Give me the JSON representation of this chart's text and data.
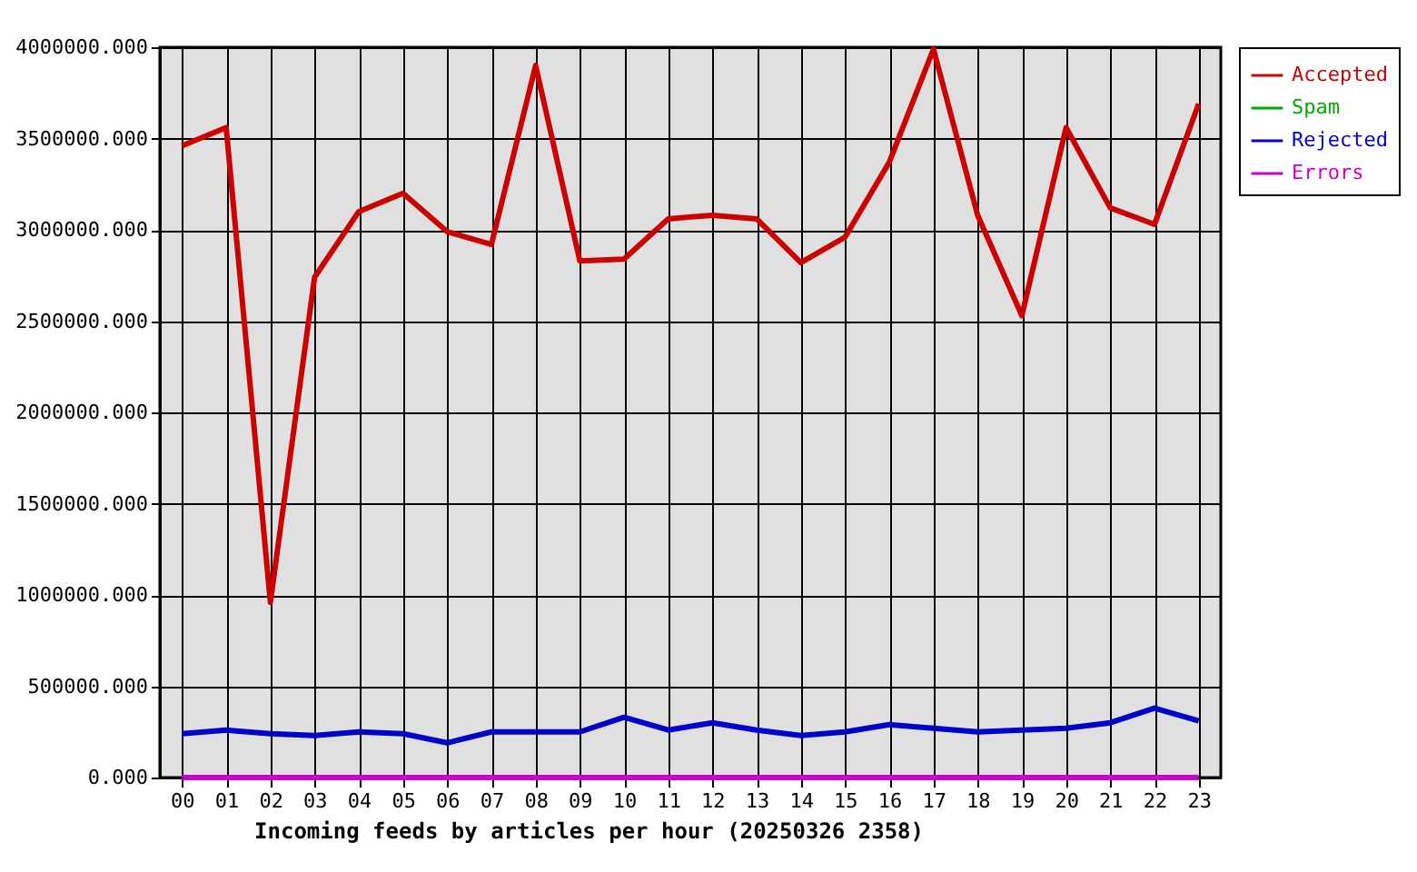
{
  "chart_data": {
    "type": "line",
    "xlabel": "Incoming feeds by articles per hour (20250326 2358)",
    "categories": [
      "00",
      "01",
      "02",
      "03",
      "04",
      "05",
      "06",
      "07",
      "08",
      "09",
      "10",
      "11",
      "12",
      "13",
      "14",
      "15",
      "16",
      "17",
      "18",
      "19",
      "20",
      "21",
      "22",
      "23"
    ],
    "series": [
      {
        "name": "Accepted",
        "color": "#cc0000",
        "values": [
          3460000,
          3560000,
          960000,
          2740000,
          3100000,
          3200000,
          2990000,
          2920000,
          3900000,
          2830000,
          2840000,
          3060000,
          3080000,
          3060000,
          2820000,
          2960000,
          3370000,
          3990000,
          3080000,
          2530000,
          3560000,
          3120000,
          3030000,
          3690000
        ]
      },
      {
        "name": "Spam",
        "color": "#00aa00",
        "values": [
          null,
          null,
          null,
          null,
          null,
          null,
          null,
          null,
          null,
          null,
          null,
          null,
          null,
          null,
          null,
          null,
          null,
          null,
          null,
          null,
          null,
          null,
          null,
          null
        ]
      },
      {
        "name": "Rejected",
        "color": "#0000cc",
        "values": [
          240000,
          260000,
          240000,
          230000,
          250000,
          240000,
          190000,
          250000,
          250000,
          250000,
          330000,
          260000,
          300000,
          260000,
          230000,
          250000,
          290000,
          270000,
          250000,
          260000,
          270000,
          300000,
          380000,
          310000
        ]
      },
      {
        "name": "Errors",
        "color": "#cc00cc",
        "values": [
          0,
          0,
          0,
          0,
          0,
          0,
          0,
          0,
          0,
          0,
          0,
          0,
          0,
          0,
          0,
          0,
          0,
          0,
          0,
          0,
          0,
          0,
          0,
          0
        ]
      }
    ],
    "ylim": [
      0,
      4000000
    ],
    "yticks": [
      {
        "value": 0,
        "label": "0.000"
      },
      {
        "value": 500000,
        "label": "500000.000"
      },
      {
        "value": 1000000,
        "label": "1000000.000"
      },
      {
        "value": 1500000,
        "label": "1500000.000"
      },
      {
        "value": 2000000,
        "label": "2000000.000"
      },
      {
        "value": 2500000,
        "label": "2500000.000"
      },
      {
        "value": 3000000,
        "label": "3000000.000"
      },
      {
        "value": 3500000,
        "label": "3500000.000"
      },
      {
        "value": 4000000,
        "label": "4000000.000"
      }
    ],
    "grid": true,
    "legend": "top right",
    "marker": "none",
    "line_style": "solid"
  }
}
